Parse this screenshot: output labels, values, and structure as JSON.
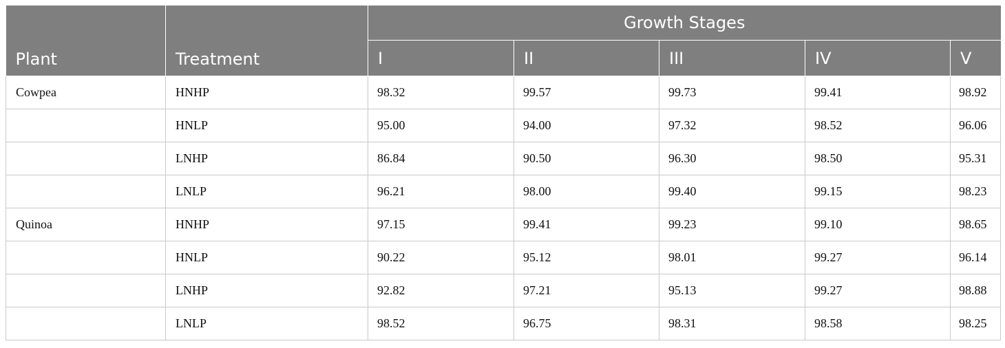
{
  "table": {
    "header": {
      "plant": "Plant",
      "treatment": "Treatment",
      "group": "Growth Stages",
      "stages": [
        "I",
        "II",
        "III",
        "IV",
        "V"
      ]
    },
    "rows": [
      {
        "plant": "Cowpea",
        "treatment": "HNHP",
        "values": [
          "98.32",
          "99.57",
          "99.73",
          "99.41",
          "98.92"
        ]
      },
      {
        "plant": "",
        "treatment": "HNLP",
        "values": [
          "95.00",
          "94.00",
          "97.32",
          "98.52",
          "96.06"
        ]
      },
      {
        "plant": "",
        "treatment": "LNHP",
        "values": [
          "86.84",
          "90.50",
          "96.30",
          "98.50",
          "95.31"
        ]
      },
      {
        "plant": "",
        "treatment": "LNLP",
        "values": [
          "96.21",
          "98.00",
          "99.40",
          "99.15",
          "98.23"
        ]
      },
      {
        "plant": "Quinoa",
        "treatment": "HNHP",
        "values": [
          "97.15",
          "99.41",
          "99.23",
          "99.10",
          "98.65"
        ]
      },
      {
        "plant": "",
        "treatment": "HNLP",
        "values": [
          "90.22",
          "95.12",
          "98.01",
          "99.27",
          "96.14"
        ]
      },
      {
        "plant": "",
        "treatment": "LNHP",
        "values": [
          "92.82",
          "97.21",
          "95.13",
          "99.27",
          "98.88"
        ]
      },
      {
        "plant": "",
        "treatment": "LNLP",
        "values": [
          "98.52",
          "96.75",
          "98.31",
          "98.58",
          "98.25"
        ]
      }
    ]
  }
}
